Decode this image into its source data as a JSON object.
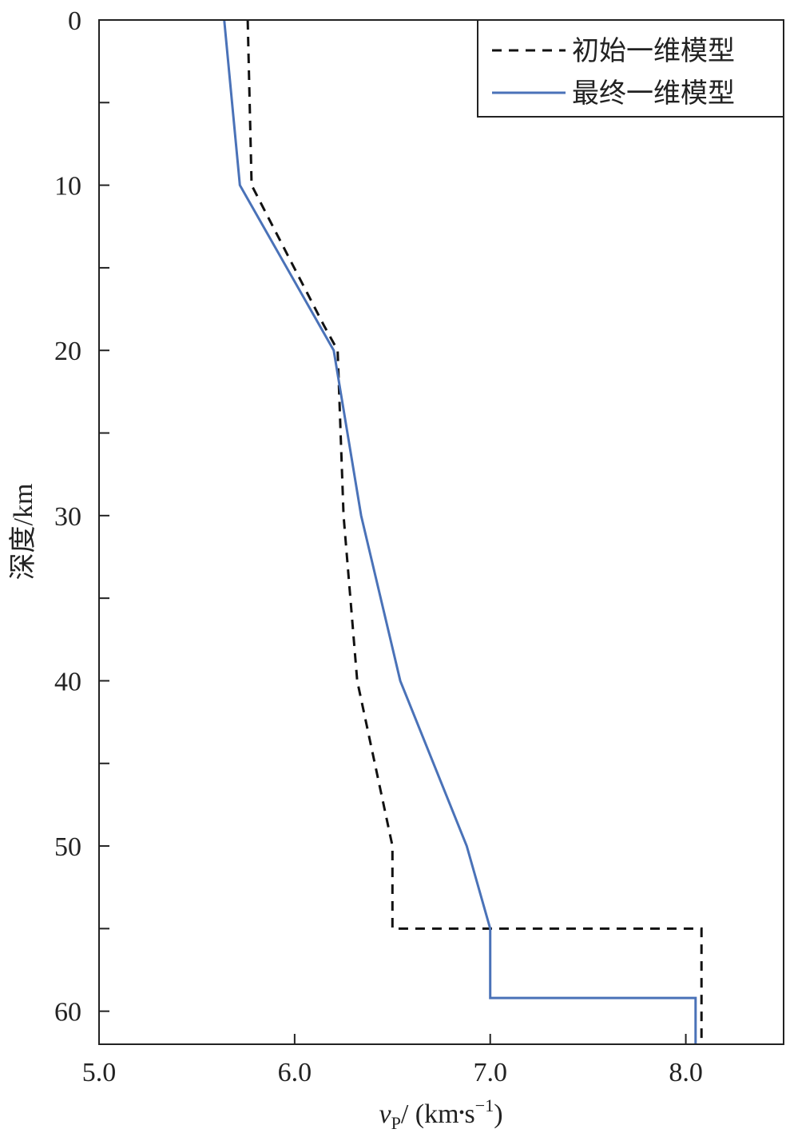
{
  "chart_data": {
    "type": "line",
    "xlabel": {
      "var": "v",
      "sub": "P",
      "unit_before": "/ (km",
      "dot": "•",
      "unit_s": "s",
      "sup": "−1",
      "close": ")"
    },
    "ylabel": "深度/km",
    "xlim": [
      5.0,
      8.5
    ],
    "ylim": [
      0,
      62
    ],
    "y_inverted": true,
    "xticks": [
      5.0,
      6.0,
      7.0,
      8.0
    ],
    "xtick_labels": [
      "5.0",
      "6.0",
      "7.0",
      "8.0"
    ],
    "yticks": [
      0,
      10,
      20,
      30,
      40,
      50,
      60
    ],
    "ytick_labels": [
      "0",
      "10",
      "20",
      "30",
      "40",
      "50",
      "60"
    ],
    "y_minor_ticks": [
      5,
      15,
      25,
      35,
      45,
      55
    ],
    "legend_position": "top-right",
    "series": [
      {
        "name": "初始一维模型",
        "style": "dashed",
        "color": "#111111",
        "x": [
          5.76,
          5.78,
          6.15,
          6.22,
          6.25,
          6.32,
          6.5,
          6.5,
          8.08,
          8.08
        ],
        "y": [
          0,
          10,
          18.5,
          20,
          30,
          40,
          50,
          55,
          55,
          62
        ]
      },
      {
        "name": "最终一维模型",
        "style": "solid",
        "color": "#4a72b8",
        "x": [
          5.64,
          5.72,
          6.2,
          6.34,
          6.54,
          6.88,
          7.0,
          7.0,
          8.05,
          8.05
        ],
        "y": [
          0,
          10,
          20,
          30,
          40,
          50,
          55,
          59.2,
          59.2,
          62
        ]
      }
    ]
  }
}
